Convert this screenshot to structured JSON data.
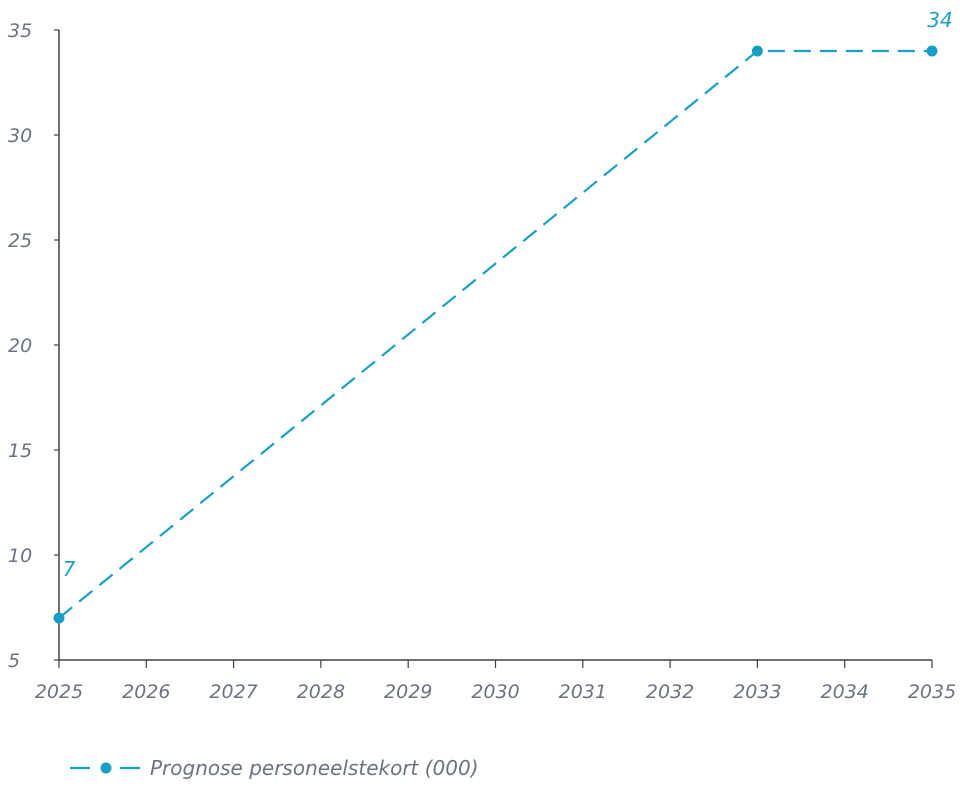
{
  "chart_data": {
    "type": "line",
    "title": "",
    "xlabel": "",
    "ylabel": "",
    "x_categories": [
      "2025",
      "2026",
      "2027",
      "2028",
      "2029",
      "2030",
      "2031",
      "2032",
      "2033",
      "2034",
      "2035"
    ],
    "y_ticks": [
      5,
      10,
      15,
      20,
      25,
      30,
      35
    ],
    "ylim": [
      5,
      35
    ],
    "grid": false,
    "legend_position": "bottom-left",
    "series": [
      {
        "name": "Prognose personeelstekort (000)",
        "color": "#1a9fc4",
        "line_style": "dashed",
        "marker": "circle",
        "points": [
          {
            "x": "2025",
            "y": 7,
            "label": "7"
          },
          {
            "x": "2033",
            "y": 34,
            "label": ""
          },
          {
            "x": "2035",
            "y": 34,
            "label": "34"
          }
        ]
      }
    ]
  }
}
